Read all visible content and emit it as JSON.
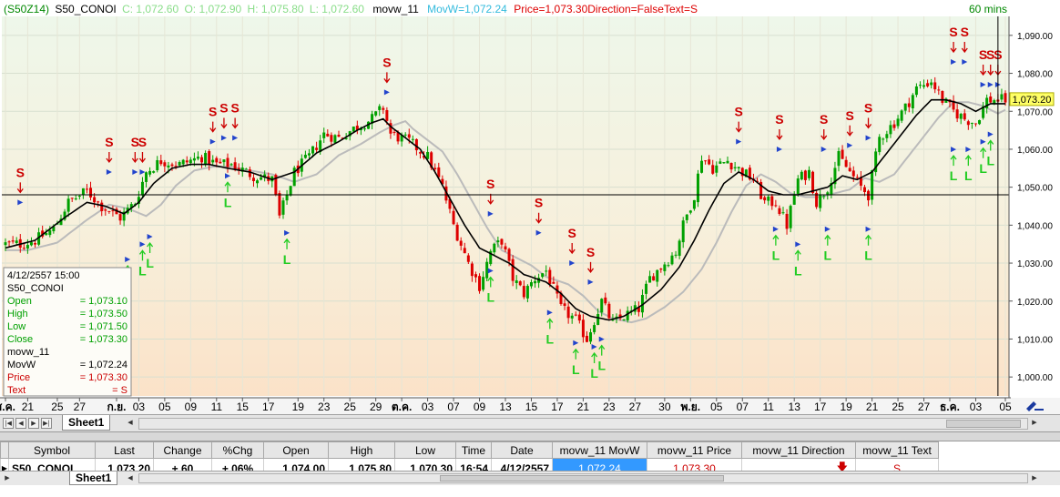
{
  "header": {
    "symbol_code": "(S50Z14)",
    "symbol": "S50_CONOI",
    "close_text": "C: 1,072.60",
    "open_text": "O: 1,072.90",
    "high_text": "H: 1,075.80",
    "low_text": "L: 1,072.60",
    "indicator": "movw_11",
    "movw_text": "MovW=1,072.24",
    "price_text": "Price=1,073.30",
    "direction_text": "Direction=False",
    "text_text": "Text=S",
    "interval": "60 mins",
    "current_price_label": "1,073.20"
  },
  "data_window": {
    "datetime": "4/12/2557    15:00",
    "symbol": "S50_CONOI",
    "rows": [
      {
        "label": "Open",
        "value": "= 1,073.10",
        "color": "#00a000"
      },
      {
        "label": "High",
        "value": "= 1,073.50",
        "color": "#00a000"
      },
      {
        "label": "Low",
        "value": "= 1,071.50",
        "color": "#00a000"
      },
      {
        "label": "Close",
        "value": "= 1,073.30",
        "color": "#00a000"
      }
    ],
    "indicator_name": "movw_11",
    "indicator_rows": [
      {
        "label": "MovW",
        "value": "= 1,072.24",
        "color": "#000000"
      },
      {
        "label": "Price",
        "value": "= 1,073.30",
        "color": "#cc0000"
      },
      {
        "label": "Text",
        "value": "=        S",
        "color": "#cc0000"
      }
    ]
  },
  "chart_data": {
    "type": "candlestick",
    "ylim": [
      995,
      1095
    ],
    "y_ticks": [
      "1,090.00",
      "1,080.00",
      "1,070.00",
      "1,060.00",
      "1,050.00",
      "1,040.00",
      "1,030.00",
      "1,020.00",
      "1,010.00",
      "1,000.00"
    ],
    "y_tick_values": [
      1090,
      1080,
      1070,
      1060,
      1050,
      1040,
      1030,
      1020,
      1010,
      1000
    ],
    "x_tick_labels": [
      {
        "label": "ส.ค.",
        "i": 0,
        "bold": true
      },
      {
        "label": "21",
        "i": 6
      },
      {
        "label": "25",
        "i": 14
      },
      {
        "label": "27",
        "i": 20
      },
      {
        "label": "ก.ย.",
        "i": 30,
        "bold": true
      },
      {
        "label": "03",
        "i": 36
      },
      {
        "label": "05",
        "i": 43
      },
      {
        "label": "09",
        "i": 50
      },
      {
        "label": "11",
        "i": 57
      },
      {
        "label": "15",
        "i": 64
      },
      {
        "label": "17",
        "i": 71
      },
      {
        "label": "19",
        "i": 79
      },
      {
        "label": "23",
        "i": 86
      },
      {
        "label": "25",
        "i": 93
      },
      {
        "label": "29",
        "i": 100
      },
      {
        "label": "ต.ค.",
        "i": 107,
        "bold": true
      },
      {
        "label": "03",
        "i": 114
      },
      {
        "label": "07",
        "i": 121
      },
      {
        "label": "09",
        "i": 128
      },
      {
        "label": "13",
        "i": 135
      },
      {
        "label": "15",
        "i": 142
      },
      {
        "label": "17",
        "i": 149
      },
      {
        "label": "21",
        "i": 156
      },
      {
        "label": "23",
        "i": 163
      },
      {
        "label": "27",
        "i": 170
      },
      {
        "label": "30",
        "i": 178
      },
      {
        "label": "พ.ย.",
        "i": 185,
        "bold": true
      },
      {
        "label": "05",
        "i": 192
      },
      {
        "label": "07",
        "i": 199
      },
      {
        "label": "11",
        "i": 206
      },
      {
        "label": "13",
        "i": 213
      },
      {
        "label": "17",
        "i": 220
      },
      {
        "label": "19",
        "i": 227
      },
      {
        "label": "21",
        "i": 234
      },
      {
        "label": "25",
        "i": 241
      },
      {
        "label": "27",
        "i": 248
      },
      {
        "label": "ธ.ค.",
        "i": 255,
        "bold": true
      },
      {
        "label": "03",
        "i": 262
      },
      {
        "label": "05",
        "i": 270
      }
    ],
    "close_anchors": [
      [
        0,
        1035
      ],
      [
        4,
        1035
      ],
      [
        8,
        1036
      ],
      [
        13,
        1039
      ],
      [
        17,
        1046
      ],
      [
        22,
        1049
      ],
      [
        26,
        1045
      ],
      [
        31,
        1042
      ],
      [
        35,
        1046
      ],
      [
        38,
        1054
      ],
      [
        42,
        1057
      ],
      [
        47,
        1056
      ],
      [
        53,
        1058
      ],
      [
        57,
        1056
      ],
      [
        61,
        1056
      ],
      [
        67,
        1053
      ],
      [
        72,
        1052
      ],
      [
        74,
        1042
      ],
      [
        78,
        1054
      ],
      [
        82,
        1058
      ],
      [
        86,
        1064
      ],
      [
        90,
        1063
      ],
      [
        95,
        1066
      ],
      [
        99,
        1068
      ],
      [
        102,
        1071
      ],
      [
        104,
        1064
      ],
      [
        109,
        1062
      ],
      [
        114,
        1058
      ],
      [
        118,
        1050
      ],
      [
        121,
        1040
      ],
      [
        125,
        1030
      ],
      [
        128,
        1024
      ],
      [
        131,
        1033
      ],
      [
        134,
        1036
      ],
      [
        137,
        1026
      ],
      [
        140,
        1022
      ],
      [
        143,
        1026
      ],
      [
        146,
        1028
      ],
      [
        150,
        1018
      ],
      [
        154,
        1015
      ],
      [
        157,
        1010
      ],
      [
        161,
        1020
      ],
      [
        164,
        1014
      ],
      [
        167,
        1016
      ],
      [
        171,
        1018
      ],
      [
        174,
        1026
      ],
      [
        178,
        1030
      ],
      [
        181,
        1033
      ],
      [
        183,
        1040
      ],
      [
        186,
        1048
      ],
      [
        188,
        1058
      ],
      [
        191,
        1055
      ],
      [
        195,
        1057
      ],
      [
        199,
        1054
      ],
      [
        202,
        1052
      ],
      [
        205,
        1046
      ],
      [
        208,
        1046
      ],
      [
        211,
        1040
      ],
      [
        214,
        1052
      ],
      [
        217,
        1054
      ],
      [
        219,
        1046
      ],
      [
        222,
        1050
      ],
      [
        225,
        1058
      ],
      [
        228,
        1054
      ],
      [
        231,
        1050
      ],
      [
        233,
        1048
      ],
      [
        236,
        1063
      ],
      [
        240,
        1067
      ],
      [
        243,
        1071
      ],
      [
        246,
        1076
      ],
      [
        250,
        1078
      ],
      [
        253,
        1073
      ],
      [
        256,
        1070
      ],
      [
        259,
        1068
      ],
      [
        262,
        1067
      ],
      [
        265,
        1073
      ],
      [
        268,
        1073
      ]
    ],
    "movw_anchors": [
      [
        0,
        1034
      ],
      [
        8,
        1036
      ],
      [
        16,
        1042
      ],
      [
        22,
        1046
      ],
      [
        27,
        1045
      ],
      [
        32,
        1043
      ],
      [
        36,
        1046
      ],
      [
        40,
        1051
      ],
      [
        45,
        1055
      ],
      [
        50,
        1056
      ],
      [
        55,
        1056
      ],
      [
        60,
        1055
      ],
      [
        66,
        1054
      ],
      [
        72,
        1052
      ],
      [
        78,
        1054
      ],
      [
        84,
        1059
      ],
      [
        90,
        1062
      ],
      [
        95,
        1065
      ],
      [
        99,
        1067
      ],
      [
        102,
        1068
      ],
      [
        104,
        1066
      ],
      [
        108,
        1063
      ],
      [
        112,
        1060
      ],
      [
        116,
        1054
      ],
      [
        120,
        1047
      ],
      [
        124,
        1040
      ],
      [
        128,
        1034
      ],
      [
        132,
        1032
      ],
      [
        136,
        1030
      ],
      [
        140,
        1027
      ],
      [
        146,
        1025
      ],
      [
        150,
        1022
      ],
      [
        154,
        1018
      ],
      [
        158,
        1016
      ],
      [
        163,
        1015
      ],
      [
        167,
        1016
      ],
      [
        172,
        1019
      ],
      [
        177,
        1023
      ],
      [
        182,
        1029
      ],
      [
        186,
        1036
      ],
      [
        190,
        1044
      ],
      [
        194,
        1051
      ],
      [
        198,
        1054
      ],
      [
        202,
        1052
      ],
      [
        206,
        1049
      ],
      [
        210,
        1048
      ],
      [
        214,
        1048
      ],
      [
        218,
        1049
      ],
      [
        222,
        1050
      ],
      [
        226,
        1053
      ],
      [
        230,
        1052
      ],
      [
        234,
        1054
      ],
      [
        238,
        1059
      ],
      [
        242,
        1064
      ],
      [
        246,
        1069
      ],
      [
        250,
        1073
      ],
      [
        254,
        1073
      ],
      [
        258,
        1072
      ],
      [
        262,
        1070
      ],
      [
        266,
        1072
      ],
      [
        269,
        1072
      ]
    ],
    "sell_signals": [
      {
        "i": 4,
        "price": 1046
      },
      {
        "i": 28,
        "price": 1054
      },
      {
        "i": 35,
        "price": 1054
      },
      {
        "i": 37,
        "price": 1054
      },
      {
        "i": 56,
        "price": 1062
      },
      {
        "i": 59,
        "price": 1063
      },
      {
        "i": 62,
        "price": 1063
      },
      {
        "i": 103,
        "price": 1075
      },
      {
        "i": 131,
        "price": 1043
      },
      {
        "i": 144,
        "price": 1038
      },
      {
        "i": 153,
        "price": 1030
      },
      {
        "i": 158,
        "price": 1025
      },
      {
        "i": 198,
        "price": 1062
      },
      {
        "i": 209,
        "price": 1060
      },
      {
        "i": 221,
        "price": 1060
      },
      {
        "i": 228,
        "price": 1061
      },
      {
        "i": 233,
        "price": 1063
      },
      {
        "i": 256,
        "price": 1083
      },
      {
        "i": 259,
        "price": 1083
      },
      {
        "i": 264,
        "price": 1077
      },
      {
        "i": 266,
        "price": 1077
      },
      {
        "i": 268,
        "price": 1077
      }
    ],
    "long_signals": [
      {
        "i": 33,
        "price": 1030
      },
      {
        "i": 37,
        "price": 1034
      },
      {
        "i": 39,
        "price": 1036
      },
      {
        "i": 60,
        "price": 1052
      },
      {
        "i": 76,
        "price": 1037
      },
      {
        "i": 131,
        "price": 1027
      },
      {
        "i": 147,
        "price": 1016
      },
      {
        "i": 154,
        "price": 1008
      },
      {
        "i": 159,
        "price": 1007
      },
      {
        "i": 161,
        "price": 1009
      },
      {
        "i": 208,
        "price": 1038
      },
      {
        "i": 214,
        "price": 1034
      },
      {
        "i": 222,
        "price": 1038
      },
      {
        "i": 233,
        "price": 1038
      },
      {
        "i": 256,
        "price": 1059
      },
      {
        "i": 260,
        "price": 1059
      },
      {
        "i": 264,
        "price": 1061
      },
      {
        "i": 266,
        "price": 1063
      }
    ],
    "bar_count": 271,
    "horizontal_line": 1048,
    "cursor_index": 268,
    "grid": true
  },
  "colors": {
    "up": "#00a000",
    "down": "#dd0000",
    "sell": "#cc0000",
    "long": "#22cc22",
    "movw": "#000000",
    "avg": "#bbbbbb",
    "signal_dot": "#2244cc"
  },
  "tabs": {
    "sheet": "Sheet1"
  },
  "watchlist": {
    "columns": [
      "Symbol",
      "Last",
      "Change",
      "%Chg",
      "Open",
      "High",
      "Low",
      "Time",
      "Date",
      "movw_11 MovW",
      "movw_11 Price",
      "movw_11 Direction",
      "movw_11 Text"
    ],
    "row": {
      "symbol": "S50_CONOI",
      "last": "1,073.20",
      "change": "+.60",
      "pchg": "+.06%",
      "open": "1,074.00",
      "high": "1,075.80",
      "low": "1,070.30",
      "time": "16:54",
      "date": "4/12/2557",
      "movw": "1,072.24",
      "price": "1,073.30",
      "direction": "down-arrow-icon",
      "text": "S"
    }
  }
}
